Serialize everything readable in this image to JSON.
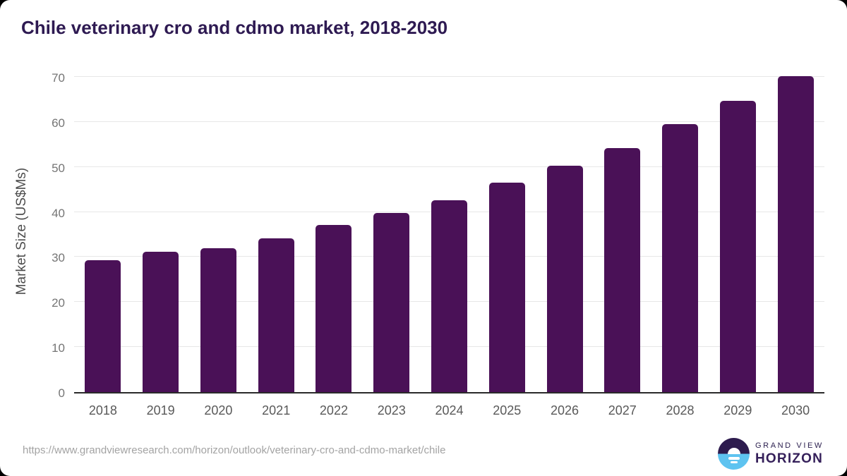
{
  "page": {
    "title": "Chile veterinary cro and cdmo market, 2018-2030"
  },
  "chart_data": {
    "type": "bar",
    "title": "Chile veterinary cro and cdmo market, 2018-2030",
    "categories": [
      "2018",
      "2019",
      "2020",
      "2021",
      "2022",
      "2023",
      "2024",
      "2025",
      "2026",
      "2027",
      "2028",
      "2029",
      "2030"
    ],
    "values": [
      29.3,
      31.2,
      32.0,
      34.2,
      37.1,
      39.8,
      42.6,
      46.5,
      50.3,
      54.2,
      59.5,
      64.6,
      70.1
    ],
    "xlabel": "",
    "ylabel": "Market Size (US$Ms)",
    "ylim": [
      0,
      70
    ],
    "yticks": [
      0,
      10,
      20,
      30,
      40,
      50,
      60,
      70
    ],
    "grid": true,
    "legend": "none",
    "bar_color": "#4a1157"
  },
  "colors": {
    "title": "#2e1a52",
    "bar": "#4a1157",
    "gridline": "#e7e7e7",
    "axis_line": "#2b2b2b",
    "y_tick_label": "#757575",
    "x_tick_label": "#595959",
    "logo_dark": "#2d1b4e",
    "logo_blue": "#5ec3f0"
  },
  "footer": {
    "source_url": "https://www.grandviewresearch.com/horizon/outlook/veterinary-cro-and-cdmo-market/chile",
    "logo": {
      "line1": "GRAND VIEW",
      "line2": "HORIZON",
      "mark": "sunrise-circle-icon"
    }
  }
}
